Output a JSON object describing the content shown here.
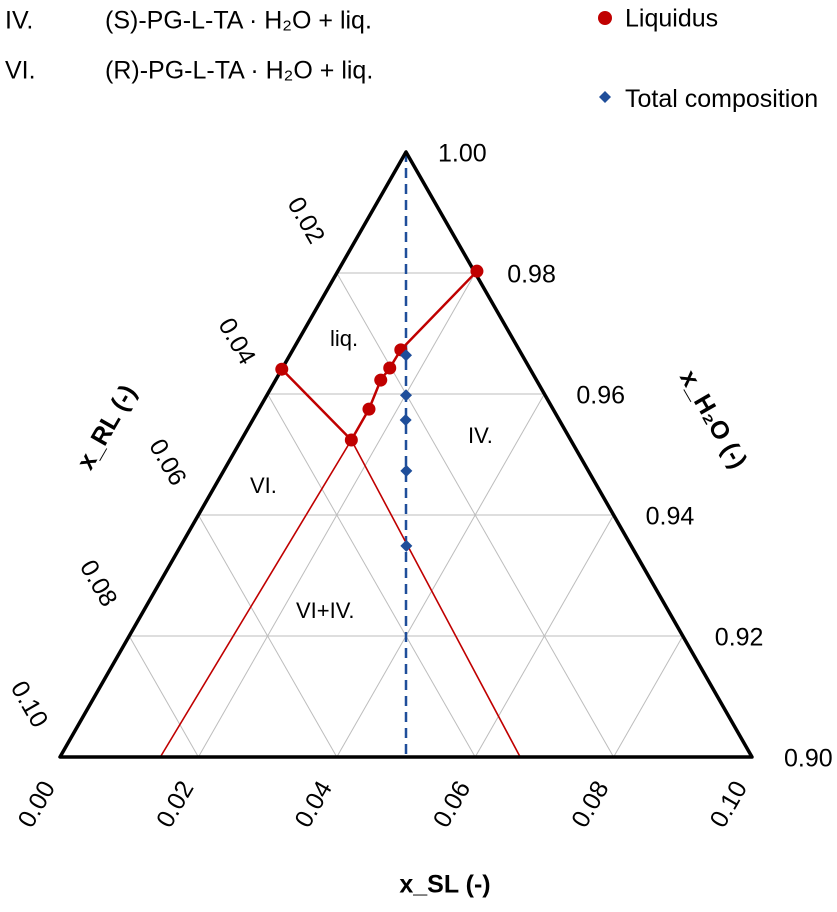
{
  "notes": [
    {
      "label": "IV.",
      "text": "(S)-PG-L-TA · H₂O + liq."
    },
    {
      "label": "VI.",
      "text": "(R)-PG-L-TA · H₂O + liq."
    }
  ],
  "chart_data": {
    "type": "ternary",
    "xlabel": "x_SL (-)",
    "ylabel": "x_H₂O (-)",
    "zlabel": "x_RL (-)",
    "xlim": [
      0,
      0.1
    ],
    "ylim": [
      0.9,
      1.0
    ],
    "xticks": [
      {
        "value": 0,
        "label": "0.00"
      },
      0.02,
      0.04,
      0.06,
      0.08,
      {
        "value": 0.1,
        "label": "0.10"
      }
    ],
    "yticks": [
      {
        "value": 0.9,
        "label": "0.90"
      },
      0.92,
      0.94,
      0.96,
      0.98,
      {
        "value": 1.0,
        "label": "1.00"
      }
    ],
    "zticks": [
      0.02,
      0.04,
      0.06,
      0.08,
      {
        "value": 0.1,
        "label": "0.10"
      }
    ],
    "grid": true,
    "series": [
      {
        "name": "Liquidus",
        "color": "#c00000",
        "marker": "circle",
        "x": [
          0,
          0.0159,
          0.0159,
          0.0152,
          0.0155,
          0.0156,
          0.0201
        ],
        "values": [
          0.9641,
          0.9524,
          0.9575,
          0.9623,
          0.9643,
          0.9673,
          0.9803
        ]
      },
      {
        "name": "Total composition",
        "color": "#1f4e9a",
        "marker": "diamond",
        "x": [
          0.0168,
          0.0201,
          0.0221,
          0.0264,
          0.0326
        ],
        "values": [
          0.9664,
          0.9598,
          0.9557,
          0.9473,
          0.9349
        ]
      }
    ],
    "tie_lines": [
      {
        "color": "#c00000",
        "x": [
          0.0159,
          0.0665
        ],
        "values": [
          0.9524,
          0.9
        ]
      },
      {
        "color": "#c00000",
        "x": [
          0.0159,
          0.0145
        ],
        "values": [
          0.9524,
          0.9
        ]
      }
    ],
    "annotations": [
      "liq.",
      "IV.",
      "VI.",
      "VI+IV."
    ]
  }
}
